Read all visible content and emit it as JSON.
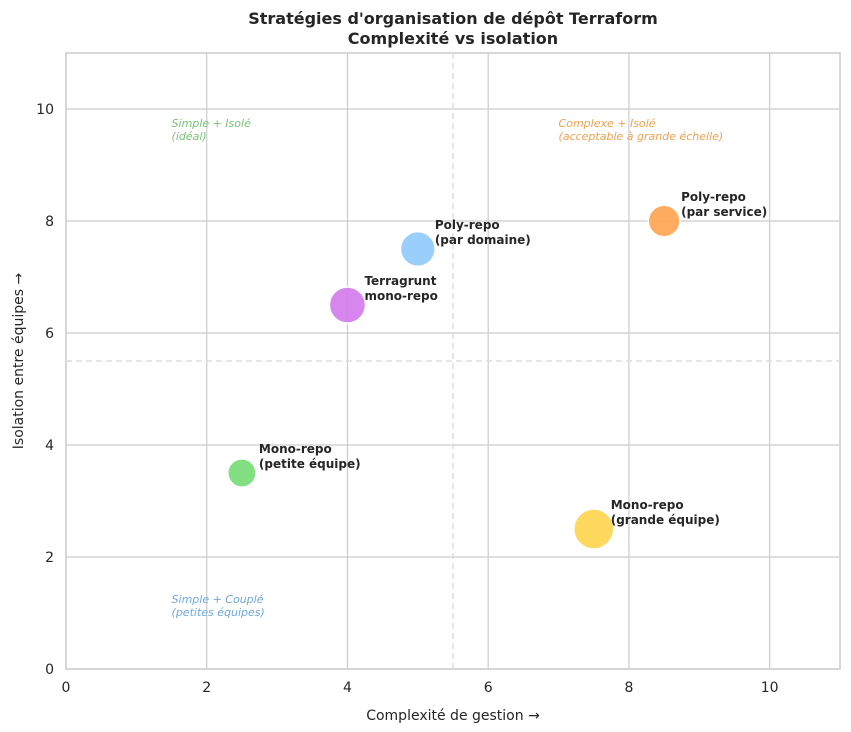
{
  "chart_data": {
    "type": "scatter",
    "title": [
      "Stratégies d'organisation de dépôt Terraform",
      "Complexité vs isolation"
    ],
    "xlabel": "Complexité de gestion  →",
    "ylabel": "Isolation entre équipes  →",
    "xlim": [
      0,
      11
    ],
    "ylim": [
      0,
      11
    ],
    "xticks": [
      0,
      2,
      4,
      6,
      8,
      10
    ],
    "yticks": [
      0,
      2,
      4,
      6,
      8,
      10
    ],
    "grid": true,
    "reference_lines": {
      "x": 5.5,
      "y": 5.5
    },
    "points": [
      {
        "label": [
          "Mono-repo",
          "(petite équipe)"
        ],
        "x": 2.5,
        "y": 3.5,
        "size": 800,
        "color": "#77dd77"
      },
      {
        "label": [
          "Mono-repo",
          "(grande équipe)"
        ],
        "x": 7.5,
        "y": 2.5,
        "size": 1600,
        "color": "#ffd54f"
      },
      {
        "label": [
          "Terragrunt",
          "mono-repo"
        ],
        "x": 4,
        "y": 6.5,
        "size": 1300,
        "color": "#d47cec"
      },
      {
        "label": [
          "Poly-repo",
          "(par domaine)"
        ],
        "x": 5,
        "y": 7.5,
        "size": 1200,
        "color": "#92cbfb"
      },
      {
        "label": [
          "Poly-repo",
          "(par service)"
        ],
        "x": 8.5,
        "y": 8,
        "size": 1000,
        "color": "#ffa552"
      }
    ],
    "annotations": [
      {
        "text": [
          "Simple + Isolé",
          "(idéal)"
        ],
        "x": 1.5,
        "y": 9.5,
        "color": "#77c277"
      },
      {
        "text": [
          "Complexe + Isolé",
          "(acceptable à grande échelle)"
        ],
        "x": 7,
        "y": 9.5,
        "color": "#f0a050"
      },
      {
        "text": [
          "Simple + Couplé",
          "(petites équipes)"
        ],
        "x": 1.5,
        "y": 1,
        "color": "#6fa8dc"
      }
    ]
  }
}
